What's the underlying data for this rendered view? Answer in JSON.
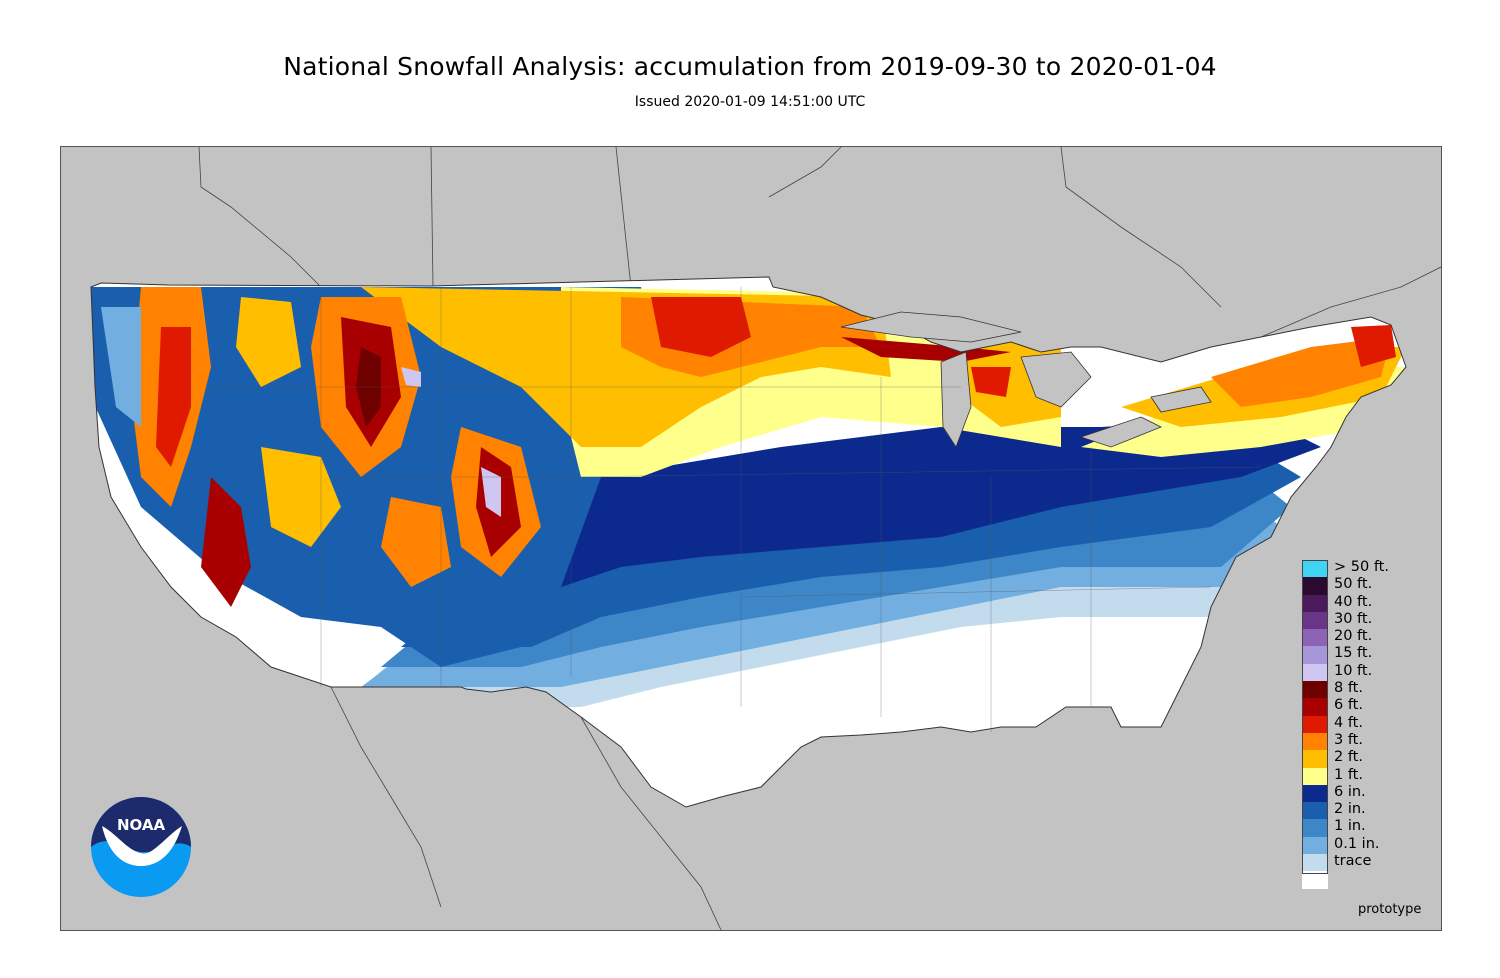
{
  "header": {
    "title": "National Snowfall Analysis: accumulation from 2019-09-30 to 2020-01-04",
    "issued": "Issued 2020-01-09 14:51:00 UTC"
  },
  "legend": {
    "items": [
      {
        "label": "> 50 ft.",
        "color": "#3fd4f4"
      },
      {
        "label": "50 ft.",
        "color": "#2a0a2f"
      },
      {
        "label": "40 ft.",
        "color": "#4b1a5a"
      },
      {
        "label": "30 ft.",
        "color": "#6a3587"
      },
      {
        "label": "20 ft.",
        "color": "#8c63b5"
      },
      {
        "label": "15 ft.",
        "color": "#a796d8"
      },
      {
        "label": "10 ft.",
        "color": "#cfc6f2"
      },
      {
        "label": "8 ft.",
        "color": "#6e0000"
      },
      {
        "label": "6 ft.",
        "color": "#a80000"
      },
      {
        "label": "4 ft.",
        "color": "#e01a00"
      },
      {
        "label": "3 ft.",
        "color": "#ff8200"
      },
      {
        "label": "2 ft.",
        "color": "#ffbe00"
      },
      {
        "label": "1 ft.",
        "color": "#ffff8c"
      },
      {
        "label": "6 in.",
        "color": "#0c2a8e"
      },
      {
        "label": "2 in.",
        "color": "#1a5fae"
      },
      {
        "label": "1 in.",
        "color": "#3d86c8"
      },
      {
        "label": "0.1 in.",
        "color": "#72aee0"
      },
      {
        "label": "trace",
        "color": "#c2dcee"
      },
      {
        "label": "",
        "color": "#ffffff"
      }
    ]
  },
  "footer": {
    "note": "prototype"
  },
  "logo": {
    "text": "NOAA",
    "icon": "noaa-logo"
  },
  "colors": {
    "background_land": "#c3c3c3",
    "no_snow": "#ffffff"
  }
}
